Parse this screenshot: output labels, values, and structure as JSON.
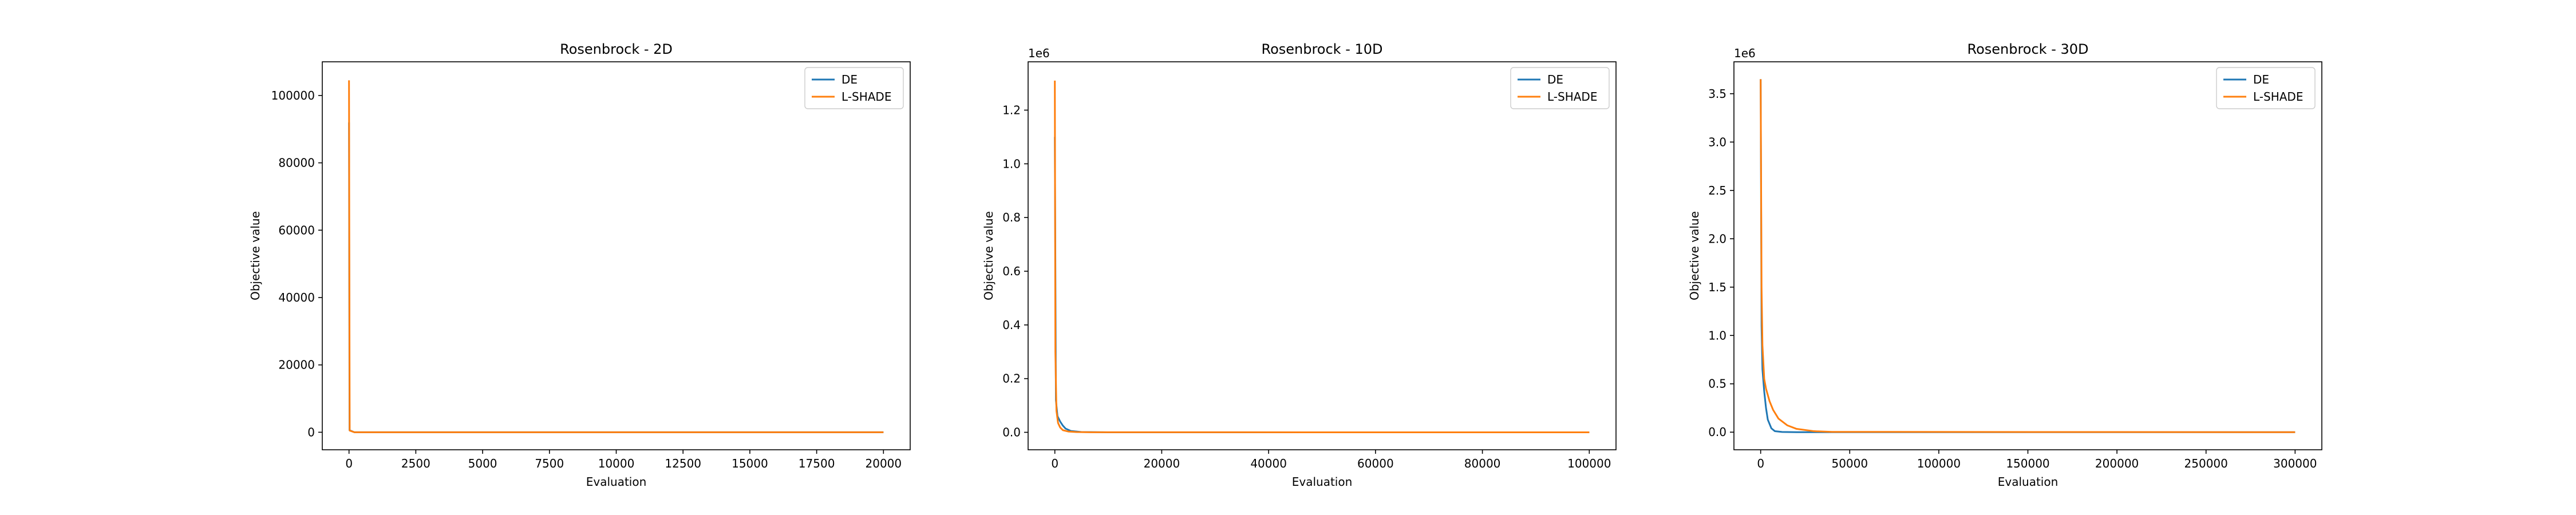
{
  "colors": {
    "de": "#1f77b4",
    "lshade": "#ff7f0e",
    "axis": "#000000",
    "background": "#ffffff"
  },
  "chart_data": [
    {
      "type": "line",
      "title": "Rosenbrock - 2D",
      "xlabel": "Evaluation",
      "ylabel": "Objective value",
      "xlim": [
        -1000,
        21000
      ],
      "ylim": [
        -5200,
        110000
      ],
      "xticks": [
        0,
        2500,
        5000,
        7500,
        10000,
        12500,
        15000,
        17500,
        20000
      ],
      "xtick_labels": [
        "0",
        "2500",
        "5000",
        "7500",
        "10000",
        "12500",
        "15000",
        "17500",
        "20000"
      ],
      "yticks": [
        0,
        20000,
        40000,
        60000,
        80000,
        100000
      ],
      "ytick_labels": [
        "0",
        "20000",
        "40000",
        "60000",
        "80000",
        "100000"
      ],
      "offset_label": "",
      "legend": {
        "position": "top-right",
        "entries": [
          "DE",
          "L-SHADE"
        ]
      },
      "grid": false,
      "series": [
        {
          "name": "DE",
          "x": [
            0,
            20,
            200,
            20000
          ],
          "y": [
            92000,
            600,
            2,
            0
          ]
        },
        {
          "name": "L-SHADE",
          "x": [
            0,
            25,
            200,
            20000
          ],
          "y": [
            104500,
            500,
            1,
            0
          ]
        }
      ]
    },
    {
      "type": "line",
      "title": "Rosenbrock - 10D",
      "xlabel": "Evaluation",
      "ylabel": "Objective value",
      "xlim": [
        -5000,
        105000
      ],
      "ylim": [
        -65000,
        1380000
      ],
      "xticks": [
        0,
        20000,
        40000,
        60000,
        80000,
        100000
      ],
      "xtick_labels": [
        "0",
        "20000",
        "40000",
        "60000",
        "80000",
        "100000"
      ],
      "yticks": [
        0,
        200000,
        400000,
        600000,
        800000,
        1000000,
        1200000
      ],
      "ytick_labels": [
        "0.0",
        "0.2",
        "0.4",
        "0.6",
        "0.8",
        "1.0",
        "1.2"
      ],
      "offset_label": "1e6",
      "legend": {
        "position": "top-right",
        "entries": [
          "DE",
          "L-SHADE"
        ]
      },
      "grid": false,
      "series": [
        {
          "name": "DE",
          "x": [
            0,
            200,
            500,
            1000,
            1500,
            2000,
            3000,
            5000,
            10000,
            100000
          ],
          "y": [
            1100000,
            120000,
            60000,
            40000,
            25000,
            14000,
            5000,
            1000,
            100,
            0
          ]
        },
        {
          "name": "L-SHADE",
          "x": [
            0,
            100,
            300,
            600,
            1000,
            1500,
            2500,
            4000,
            7000,
            100000
          ],
          "y": [
            1310000,
            300000,
            80000,
            35000,
            18000,
            8000,
            3000,
            1000,
            200,
            0
          ]
        }
      ]
    },
    {
      "type": "line",
      "title": "Rosenbrock - 30D",
      "xlabel": "Evaluation",
      "ylabel": "Objective value",
      "xlim": [
        -15000,
        315000
      ],
      "ylim": [
        -182000,
        3830000
      ],
      "xticks": [
        0,
        50000,
        100000,
        150000,
        200000,
        250000,
        300000
      ],
      "xtick_labels": [
        "0",
        "50000",
        "100000",
        "150000",
        "200000",
        "250000",
        "300000"
      ],
      "yticks": [
        0,
        500000,
        1000000,
        1500000,
        2000000,
        2500000,
        3000000,
        3500000
      ],
      "ytick_labels": [
        "0.0",
        "0.5",
        "1.0",
        "1.5",
        "2.0",
        "2.5",
        "3.0",
        "3.5"
      ],
      "offset_label": "1e6",
      "legend": {
        "position": "top-right",
        "entries": [
          "DE",
          "L-SHADE"
        ]
      },
      "grid": false,
      "series": [
        {
          "name": "DE",
          "x": [
            0,
            500,
            1000,
            2000,
            3000,
            4000,
            6000,
            8000,
            12000,
            20000,
            300000
          ],
          "y": [
            3650000,
            1100000,
            650000,
            420000,
            250000,
            130000,
            40000,
            10000,
            2000,
            200,
            0
          ]
        },
        {
          "name": "L-SHADE",
          "x": [
            0,
            500,
            1000,
            2000,
            3000,
            5000,
            7000,
            10000,
            15000,
            20000,
            30000,
            40000,
            300000
          ],
          "y": [
            3650000,
            1500000,
            900000,
            550000,
            450000,
            320000,
            230000,
            140000,
            70000,
            35000,
            10000,
            3000,
            0
          ]
        }
      ]
    }
  ]
}
